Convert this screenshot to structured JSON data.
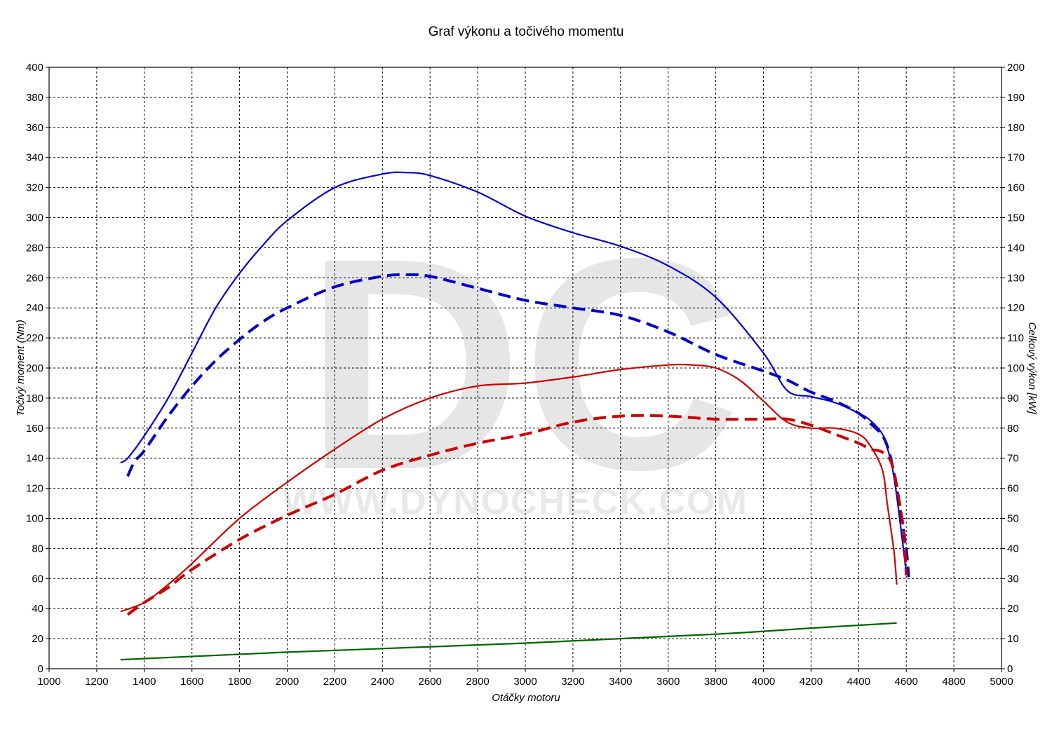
{
  "chart_data": {
    "type": "line",
    "title": "Graf výkonu a točivého momentu",
    "xlabel": "Otáčky motoru",
    "ylabel_left": "Točivý moment (Nm)",
    "ylabel_right": "Celkový výkon [kW]",
    "watermark_logo": "DC",
    "watermark_url": "WWW.DYNOCHECK.COM",
    "xlim": [
      1000,
      5000
    ],
    "ylim_left": [
      0,
      400
    ],
    "ylim_right": [
      0,
      200
    ],
    "x_ticks": [
      "1000",
      "1200",
      "1400",
      "1600",
      "1800",
      "2000",
      "2200",
      "2400",
      "2600",
      "2800",
      "3000",
      "3200",
      "3400",
      "3600",
      "3800",
      "4000",
      "4200",
      "4400",
      "4600",
      "4800",
      "5000"
    ],
    "y_left_ticks": [
      "0",
      "20",
      "40",
      "60",
      "80",
      "100",
      "120",
      "140",
      "160",
      "180",
      "200",
      "220",
      "240",
      "260",
      "280",
      "300",
      "320",
      "340",
      "360",
      "380",
      "400"
    ],
    "y_right_ticks": [
      "0",
      "10",
      "20",
      "30",
      "40",
      "50",
      "60",
      "70",
      "80",
      "90",
      "100",
      "110",
      "120",
      "130",
      "140",
      "150",
      "160",
      "170",
      "180",
      "190",
      "200"
    ],
    "grid": true,
    "colors": {
      "torque": "#0000cc",
      "power": "#cc0000",
      "loss": "#006400"
    },
    "series": [
      {
        "key": "torque_tuned",
        "axis": "left",
        "style": "solid",
        "color": "#0000cc",
        "x": [
          1300,
          1330,
          1400,
          1500,
          1600,
          1700,
          1800,
          1900,
          2000,
          2200,
          2400,
          2500,
          2600,
          2800,
          3000,
          3200,
          3400,
          3600,
          3800,
          4000,
          4100,
          4200,
          4300,
          4400,
          4450,
          4500,
          4520,
          4540,
          4560,
          4580,
          4600
        ],
        "y": [
          137,
          140,
          155,
          180,
          210,
          240,
          263,
          282,
          298,
          320,
          329,
          330,
          328,
          317,
          301,
          290,
          281,
          268,
          247,
          210,
          185,
          181,
          177,
          170,
          165,
          156,
          147,
          135,
          115,
          90,
          64
        ]
      },
      {
        "key": "torque_stock",
        "axis": "left",
        "style": "dashed",
        "color": "#0000cc",
        "x": [
          1330,
          1360,
          1400,
          1500,
          1600,
          1700,
          1800,
          1900,
          2000,
          2200,
          2400,
          2500,
          2600,
          2800,
          3000,
          3200,
          3400,
          3600,
          3800,
          4000,
          4100,
          4200,
          4300,
          4400,
          4450,
          4500,
          4530,
          4560,
          4580,
          4600,
          4610
        ],
        "y": [
          128,
          138,
          145,
          168,
          188,
          205,
          219,
          231,
          240,
          254,
          261,
          262,
          261,
          253,
          245,
          240,
          235,
          224,
          209,
          198,
          192,
          184,
          178,
          170,
          163,
          155,
          143,
          120,
          100,
          80,
          61
        ]
      },
      {
        "key": "power_tuned",
        "axis": "right",
        "style": "solid",
        "color": "#cc0000",
        "x": [
          1300,
          1400,
          1500,
          1600,
          1800,
          2000,
          2200,
          2400,
          2600,
          2800,
          3000,
          3200,
          3400,
          3600,
          3700,
          3800,
          3900,
          4000,
          4100,
          4200,
          4300,
          4400,
          4450,
          4500,
          4520,
          4540,
          4550,
          4560
        ],
        "y": [
          19,
          22,
          28,
          35,
          50,
          62,
          73,
          83,
          90,
          94,
          95,
          97,
          99.5,
          101,
          101,
          100,
          96,
          89,
          82,
          80,
          80,
          78,
          74,
          66,
          55,
          44,
          38,
          28
        ]
      },
      {
        "key": "power_stock",
        "axis": "right",
        "style": "dashed",
        "color": "#cc0000",
        "x": [
          1330,
          1400,
          1500,
          1600,
          1800,
          2000,
          2200,
          2400,
          2600,
          2800,
          3000,
          3200,
          3400,
          3600,
          3800,
          4000,
          4100,
          4200,
          4300,
          4400,
          4450,
          4500,
          4540,
          4570,
          4590,
          4600
        ],
        "y": [
          18,
          22,
          27,
          33,
          43,
          51,
          58,
          66,
          71,
          75,
          78,
          82,
          84,
          84,
          83,
          83,
          83,
          81,
          78,
          75,
          73,
          72,
          68,
          56,
          45,
          31
        ]
      },
      {
        "key": "loss",
        "axis": "right",
        "style": "solid",
        "color": "#006400",
        "x": [
          1300,
          2000,
          3000,
          3800,
          4200,
          4560
        ],
        "y": [
          3,
          5.5,
          8.5,
          11.5,
          13.5,
          15.2
        ]
      }
    ]
  }
}
